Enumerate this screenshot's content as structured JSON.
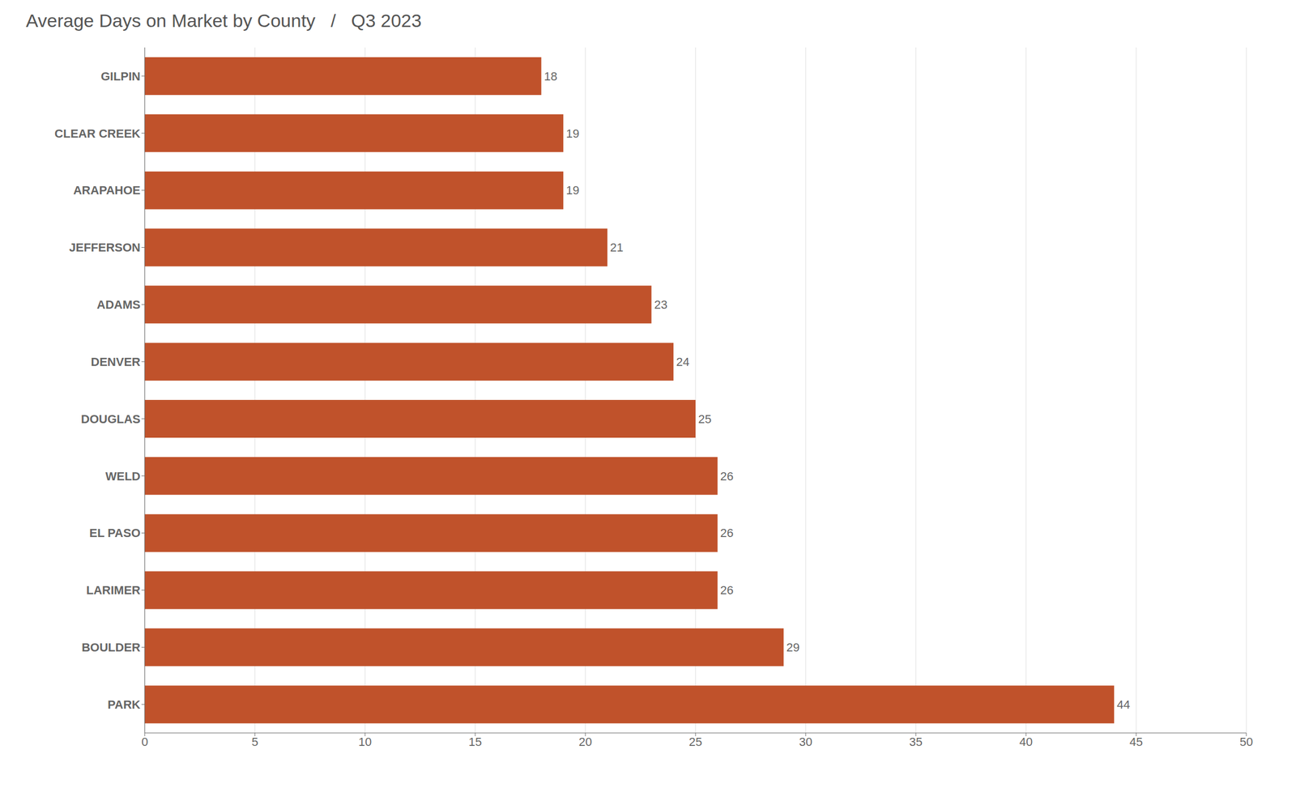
{
  "chart_data": {
    "type": "bar",
    "title": "Average Days on Market by County   /   Q3 2023",
    "orientation": "horizontal",
    "categories": [
      "GILPIN",
      "CLEAR CREEK",
      "ARAPAHOE",
      "JEFFERSON",
      "ADAMS",
      "DENVER",
      "DOUGLAS",
      "WELD",
      "EL PASO",
      "LARIMER",
      "BOULDER",
      "PARK"
    ],
    "values": [
      18,
      19,
      19,
      21,
      23,
      24,
      25,
      26,
      26,
      26,
      29,
      44
    ],
    "color": "#C0522B",
    "xlim": [
      0,
      50
    ],
    "xticks": [
      0,
      5,
      10,
      15,
      20,
      25,
      30,
      35,
      40,
      45,
      50
    ],
    "grid": true,
    "data_labels": true
  }
}
